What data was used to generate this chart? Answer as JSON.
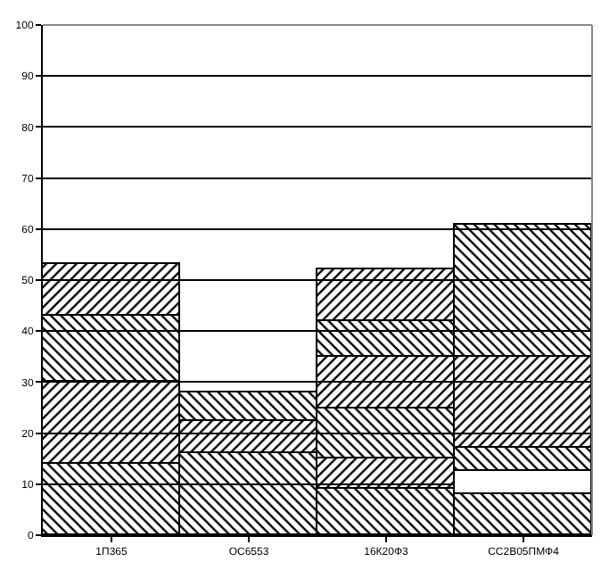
{
  "chart_data": {
    "type": "bar",
    "stacked": true,
    "categories": [
      "1П365",
      "ОС6553",
      "16К20Ф3",
      "СС2В05ПМФ4"
    ],
    "series": [
      {
        "color": "#000000",
        "values": [
          14,
          16,
          9,
          8
        ]
      },
      {
        "colors": [
          "#000000",
          "#000000",
          "#000000",
          "#ffffff"
        ],
        "values": [
          16,
          6.5,
          6,
          4.5
        ]
      },
      {
        "color": "#000000",
        "values": [
          13,
          5.5,
          10,
          4.5
        ]
      },
      {
        "color": "#000000",
        "values": [
          10,
          null,
          10,
          18
        ]
      },
      {
        "color": "#000000",
        "values": [
          null,
          null,
          7,
          26
        ]
      },
      {
        "color": "#000000",
        "values": [
          null,
          null,
          10,
          null
        ]
      }
    ],
    "ylim": [
      0,
      100
    ],
    "yticks": [
      0,
      10,
      20,
      30,
      40,
      50,
      60,
      70,
      80,
      90,
      100
    ],
    "grid": "y"
  }
}
